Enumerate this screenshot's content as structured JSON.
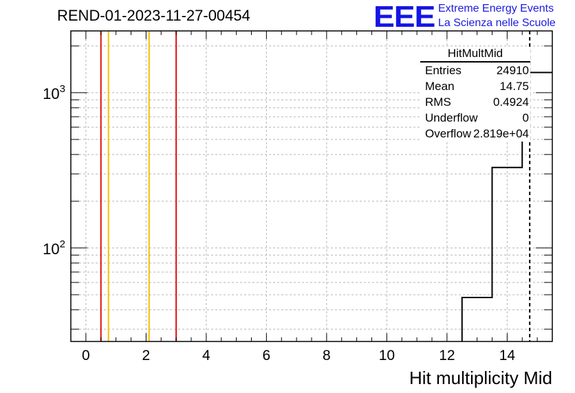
{
  "title": "REND-01-2023-11-27-00454",
  "logo": {
    "mark": "EEE",
    "line1": "Extreme Energy Events",
    "line2": "La Scienza nelle Scuole",
    "color": "#1515e6"
  },
  "stats_box": {
    "title": "HitMultMid",
    "rows": [
      {
        "label": "Entries",
        "value": "24910"
      },
      {
        "label": "Mean",
        "value": "14.75"
      },
      {
        "label": "RMS",
        "value": "0.4924"
      },
      {
        "label": "Underflow",
        "value": "0"
      },
      {
        "label": "Overflow",
        "value": "2.819e+04"
      }
    ]
  },
  "chart_data": {
    "type": "histogram",
    "title": "REND-01-2023-11-27-00454",
    "xlabel": "Hit multiplicity Mid",
    "ylabel": "",
    "xlim": [
      -0.5,
      15.5
    ],
    "ylim": [
      25,
      2500
    ],
    "yscale": "log",
    "grid": true,
    "x_ticks": [
      0,
      2,
      4,
      6,
      8,
      10,
      12,
      14
    ],
    "y_ticks": [
      {
        "value": 100,
        "base": "10",
        "exp": "2"
      },
      {
        "value": 1000,
        "base": "10",
        "exp": "3"
      }
    ],
    "bins": [
      {
        "x0": 12.5,
        "x1": 13.5,
        "count": 48
      },
      {
        "x0": 13.5,
        "x1": 14.5,
        "count": 330
      },
      {
        "x0": 14.5,
        "x1": 15.5,
        "count": 1350
      }
    ],
    "vertical_lines": [
      {
        "x": 0.5,
        "color": "#e01010",
        "style": "solid"
      },
      {
        "x": 0.75,
        "color": "#f2c000",
        "style": "solid"
      },
      {
        "x": 2.1,
        "color": "#f2c000",
        "style": "solid"
      },
      {
        "x": 3.0,
        "color": "#e01010",
        "style": "solid"
      },
      {
        "x": 14.75,
        "color": "#000000",
        "style": "dashed"
      }
    ]
  }
}
